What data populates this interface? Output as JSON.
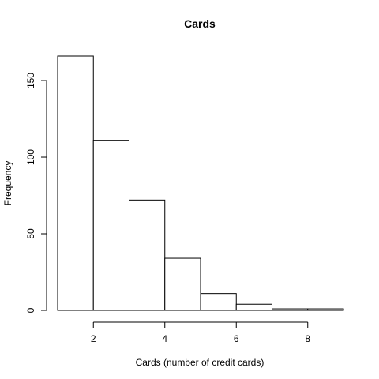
{
  "chart_data": {
    "type": "bar",
    "title": "Cards",
    "xlabel": "Cards (number of credit cards)",
    "ylabel": "Frequency",
    "bins": [
      {
        "start": 1,
        "end": 2,
        "count": 166
      },
      {
        "start": 2,
        "end": 3,
        "count": 111
      },
      {
        "start": 3,
        "end": 4,
        "count": 72
      },
      {
        "start": 4,
        "end": 5,
        "count": 34
      },
      {
        "start": 5,
        "end": 6,
        "count": 11
      },
      {
        "start": 6,
        "end": 7,
        "count": 4
      },
      {
        "start": 7,
        "end": 8,
        "count": 1
      },
      {
        "start": 8,
        "end": 9,
        "count": 1
      }
    ],
    "xlim": [
      1,
      9
    ],
    "ylim": [
      0,
      166
    ],
    "x_ticks": [
      2,
      4,
      6,
      8
    ],
    "y_ticks": [
      0,
      50,
      100,
      150
    ],
    "grid": false,
    "bar_fill": "#ffffff",
    "bar_stroke": "#000000"
  }
}
